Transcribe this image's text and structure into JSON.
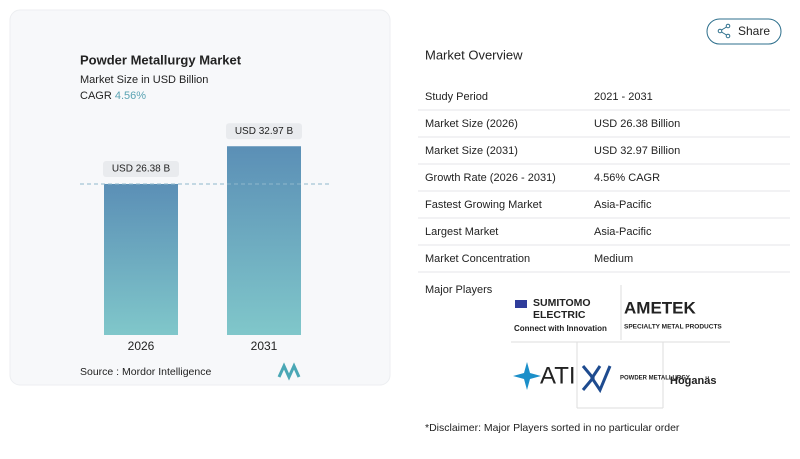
{
  "share": "Share",
  "chart_data": {
    "type": "bar",
    "title": "Powder Metallurgy Market",
    "subtitle": "Market Size in USD Billion",
    "cagr_label": "CAGR",
    "cagr_value": "4.56%",
    "categories": [
      "2026",
      "2031"
    ],
    "values": [
      26.38,
      32.97
    ],
    "value_labels": [
      "USD 26.38 B",
      "USD 32.97 B"
    ],
    "ylim": [
      0,
      40
    ],
    "colors": [
      "#5b8fb6",
      "#80c7ca"
    ],
    "source": "Source : Mordor Intelligence"
  },
  "overview": {
    "title": "Market Overview",
    "rows": [
      [
        "Study Period",
        "2021 - 2031"
      ],
      [
        "Market Size (2026)",
        "USD 26.38 Billion"
      ],
      [
        "Market Size (2031)",
        "USD 32.97 Billion"
      ],
      [
        "Growth Rate (2026 - 2031)",
        "4.56% CAGR"
      ],
      [
        "Fastest Growing Market",
        "Asia-Pacific"
      ],
      [
        "Largest Market",
        "Asia-Pacific"
      ],
      [
        "Market Concentration",
        "Medium"
      ]
    ]
  },
  "players": {
    "title": "Major Players",
    "logos": [
      [
        "SUMITOMO",
        "ELECTRIC",
        "Connect with Innovation"
      ],
      [
        "AMETEK",
        "SPECIALTY METAL PRODUCTS"
      ],
      [
        "ATI"
      ],
      [
        "POWDER METALLURGY"
      ],
      [
        "Höganäs"
      ]
    ]
  },
  "disclaimer": "*Disclaimer: Major Players sorted in no particular order"
}
